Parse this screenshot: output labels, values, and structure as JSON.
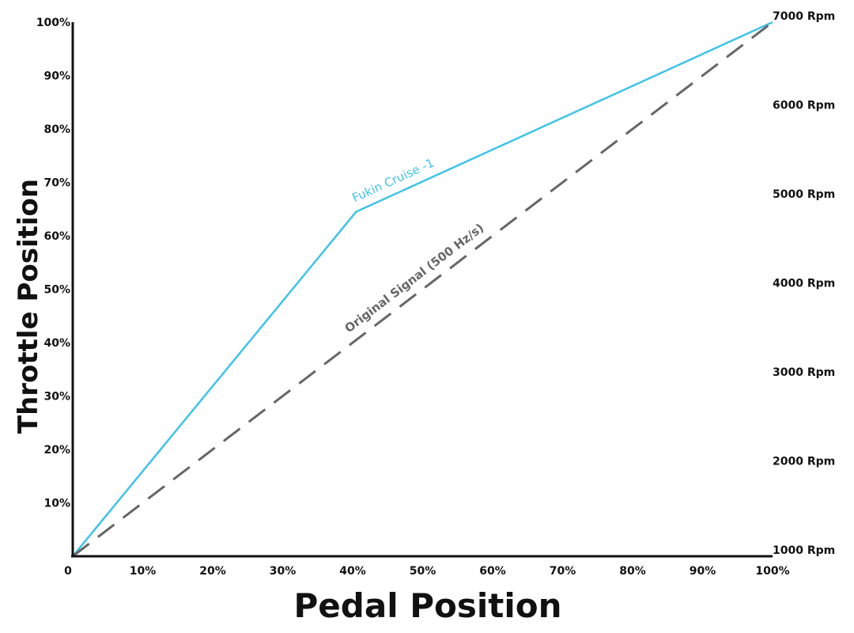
{
  "chart_data": {
    "type": "line",
    "xlabel": "Pedal Position",
    "ylabel": "Throttle Position",
    "xlim": [
      0,
      100
    ],
    "ylim": [
      0,
      100
    ],
    "x_ticks": [
      {
        "value": 0,
        "label": "0"
      },
      {
        "value": 10,
        "label": "10%"
      },
      {
        "value": 20,
        "label": "20%"
      },
      {
        "value": 30,
        "label": "30%"
      },
      {
        "value": 40,
        "label": "40%"
      },
      {
        "value": 50,
        "label": "50%"
      },
      {
        "value": 60,
        "label": "60%"
      },
      {
        "value": 70,
        "label": "70%"
      },
      {
        "value": 80,
        "label": "80%"
      },
      {
        "value": 90,
        "label": "90%"
      },
      {
        "value": 100,
        "label": "100%"
      }
    ],
    "y_ticks": [
      {
        "value": 10,
        "label": "10%"
      },
      {
        "value": 20,
        "label": "20%"
      },
      {
        "value": 30,
        "label": "30%"
      },
      {
        "value": 40,
        "label": "40%"
      },
      {
        "value": 50,
        "label": "50%"
      },
      {
        "value": 60,
        "label": "60%"
      },
      {
        "value": 70,
        "label": "70%"
      },
      {
        "value": 80,
        "label": "80%"
      },
      {
        "value": 90,
        "label": "90%"
      },
      {
        "value": 100,
        "label": "100%"
      }
    ],
    "y2_ticks": [
      {
        "value": 0,
        "label": "1000 Rpm"
      },
      {
        "value": 16.7,
        "label": "2000 Rpm"
      },
      {
        "value": 33.3,
        "label": "3000 Rpm"
      },
      {
        "value": 50,
        "label": "4000 Rpm"
      },
      {
        "value": 66.7,
        "label": "5000 Rpm"
      },
      {
        "value": 83.3,
        "label": "6000 Rpm"
      },
      {
        "value": 100,
        "label": "7000 Rpm"
      }
    ],
    "series": [
      {
        "name": "Fukin Cruise -1",
        "style": "solid",
        "color": "#3ec3e8",
        "x": [
          0,
          40.5,
          100
        ],
        "y": [
          0,
          64.5,
          100
        ]
      },
      {
        "name": "Original Signal (500 Hz/s)",
        "style": "dashed",
        "color": "#666666",
        "x": [
          0,
          100
        ],
        "y": [
          0,
          100
        ]
      }
    ],
    "grid": false,
    "legend": "inline labels"
  }
}
